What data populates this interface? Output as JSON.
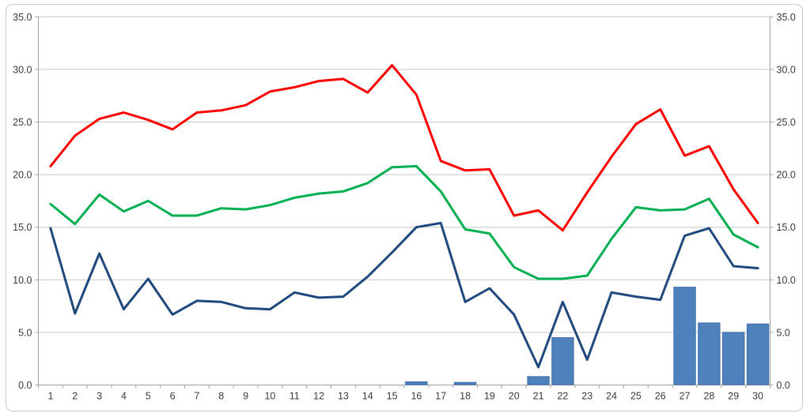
{
  "chart_data": {
    "type": "combo",
    "title": "",
    "legend": "none",
    "grid": true,
    "categories": [
      1,
      2,
      3,
      4,
      5,
      6,
      7,
      8,
      9,
      10,
      11,
      12,
      13,
      14,
      15,
      16,
      17,
      18,
      19,
      20,
      21,
      22,
      23,
      24,
      25,
      26,
      27,
      28,
      29,
      30
    ],
    "series": [
      {
        "name": "bar-series",
        "type": "bar",
        "color": "#4f81bd",
        "border_color": "#3a6ba8",
        "values": [
          null,
          null,
          null,
          null,
          null,
          null,
          null,
          null,
          null,
          null,
          null,
          null,
          null,
          null,
          null,
          0.3,
          null,
          0.25,
          null,
          null,
          0.8,
          4.5,
          null,
          null,
          null,
          null,
          9.3,
          5.9,
          5.0,
          5.8
        ]
      },
      {
        "name": "red-line",
        "type": "line",
        "color": "#ff0000",
        "values": [
          20.8,
          23.7,
          25.3,
          25.9,
          25.2,
          24.3,
          25.9,
          26.1,
          26.6,
          27.9,
          28.3,
          28.9,
          29.1,
          27.8,
          30.4,
          27.6,
          21.3,
          20.4,
          20.5,
          16.1,
          16.6,
          14.7,
          18.3,
          21.7,
          24.8,
          26.2,
          21.8,
          22.7,
          18.6,
          15.4
        ]
      },
      {
        "name": "green-line",
        "type": "line",
        "color": "#00b050",
        "values": [
          17.2,
          15.3,
          18.1,
          16.5,
          17.5,
          16.1,
          16.1,
          16.8,
          16.7,
          17.1,
          17.8,
          18.2,
          18.4,
          19.2,
          20.7,
          20.8,
          18.4,
          14.8,
          14.4,
          11.2,
          10.1,
          10.1,
          10.4,
          13.9,
          16.9,
          16.6,
          16.7,
          17.7,
          14.3,
          13.1
        ]
      },
      {
        "name": "blue-line",
        "type": "line",
        "color": "#1f497d",
        "values": [
          14.9,
          6.8,
          12.5,
          7.2,
          10.1,
          6.7,
          8.0,
          7.9,
          7.3,
          7.2,
          8.8,
          8.3,
          8.4,
          10.3,
          12.6,
          15.0,
          15.4,
          7.9,
          9.2,
          6.7,
          1.7,
          7.9,
          2.4,
          8.8,
          8.4,
          8.1,
          14.2,
          14.9,
          11.3,
          11.1
        ]
      }
    ],
    "x_axis": {
      "tick_labels": [
        "1",
        "2",
        "3",
        "4",
        "5",
        "6",
        "7",
        "8",
        "9",
        "10",
        "11",
        "12",
        "13",
        "14",
        "15",
        "16",
        "17",
        "18",
        "19",
        "20",
        "21",
        "22",
        "23",
        "24",
        "25",
        "26",
        "27",
        "28",
        "29",
        "30"
      ]
    },
    "y_axis": {
      "min": 0,
      "max": 35,
      "step": 5,
      "tick_labels": [
        "0.0",
        "5.0",
        "10.0",
        "15.0",
        "20.0",
        "25.0",
        "30.0",
        "35.0"
      ],
      "sides": [
        "left",
        "right"
      ]
    },
    "colors": {
      "gridline": "#c6c6c6",
      "axis_line": "#a0a0a0",
      "tick_label": "#3a3a3a",
      "background": "#ffffff",
      "frame_border": "#c9c9c9"
    }
  }
}
